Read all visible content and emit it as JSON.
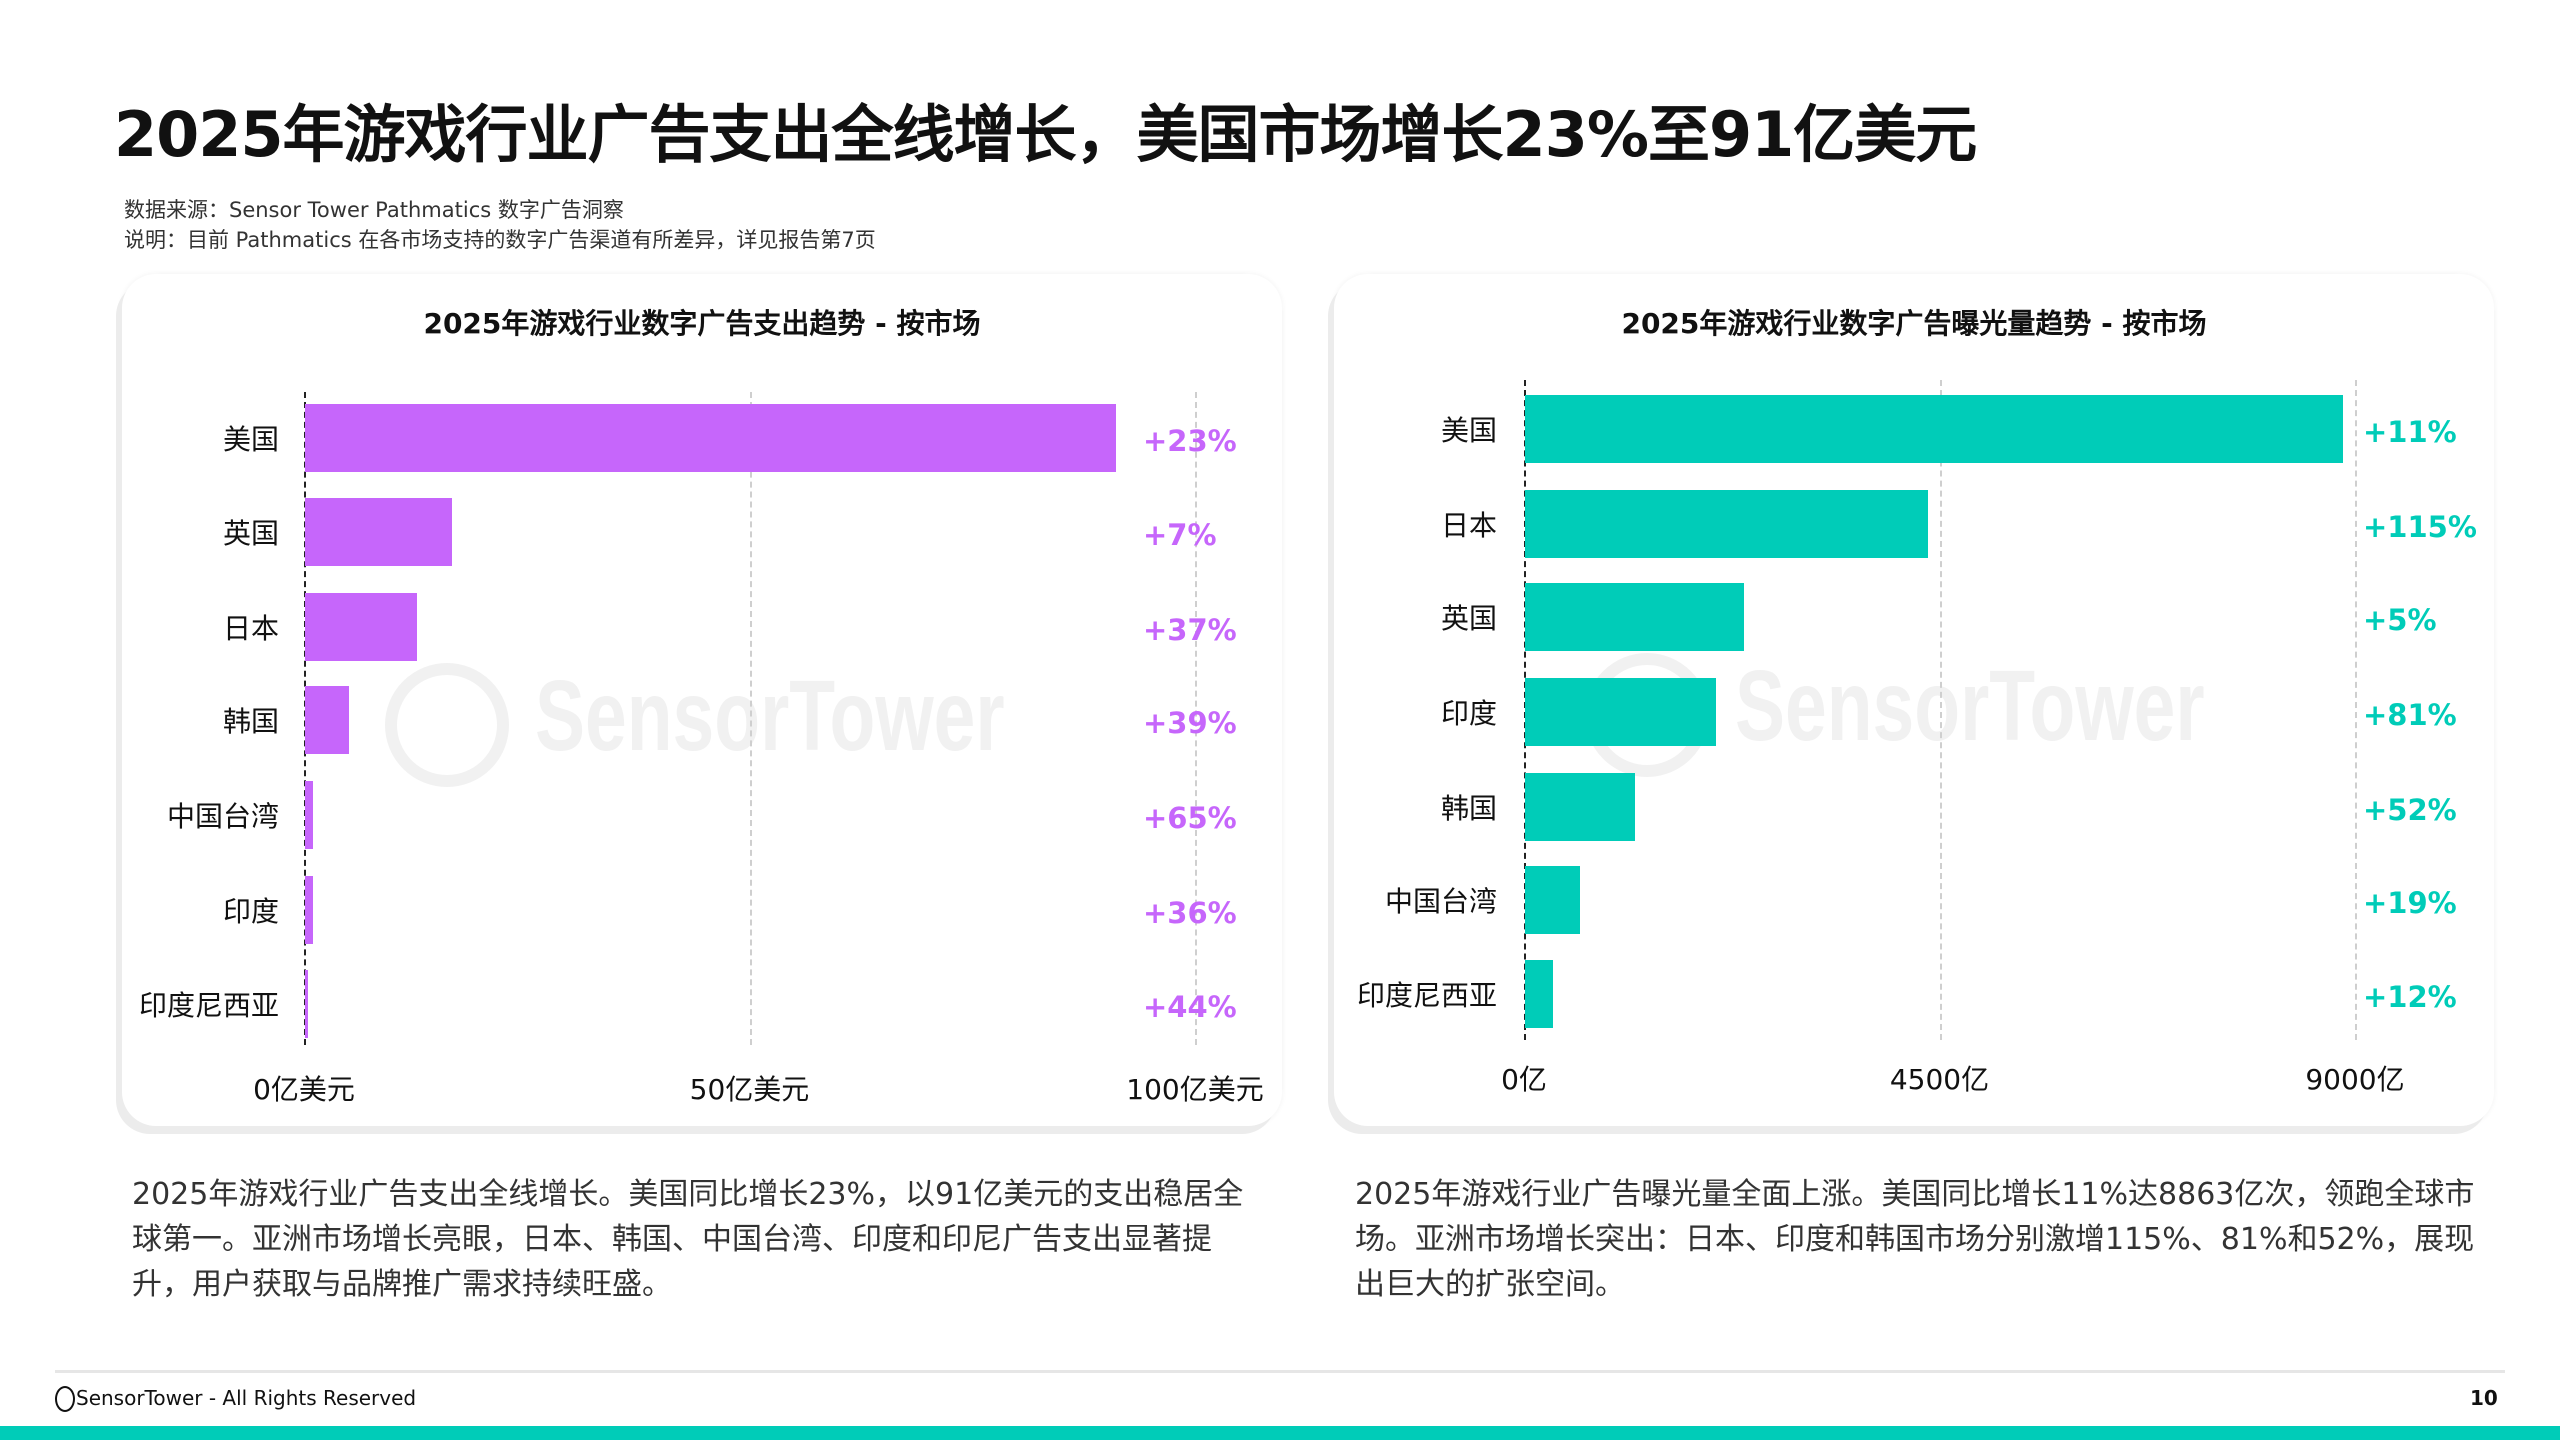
{
  "title": "2025年游戏行业广告支出全线增长，美国市场增长23%至91亿美元",
  "notes": {
    "source": "数据来源：Sensor Tower  Pathmatics  数字广告洞察",
    "description": "说明：目前 Pathmatics 在各市场支持的数字广告渠道有所差异，详见报告第7页"
  },
  "watermark": "SensorTower",
  "chart_data": [
    {
      "type": "bar",
      "orientation": "horizontal",
      "title": "2025年游戏行业数字广告支出趋势 - 按市场",
      "categories": [
        "美国",
        "英国",
        "日本",
        "韩国",
        "中国台湾",
        "印度",
        "印度尼西亚"
      ],
      "values": [
        91,
        16.5,
        12.6,
        4.9,
        0.9,
        0.9,
        0.3
      ],
      "growth_labels": [
        "+23%",
        "+7%",
        "+37%",
        "+39%",
        "+65%",
        "+36%",
        "+44%"
      ],
      "xlim": [
        0,
        100
      ],
      "ticks": [
        0,
        50,
        100
      ],
      "tick_labels": [
        "0亿美元",
        "50亿美元",
        "100亿美元"
      ],
      "grid": true,
      "color": "#c666fb",
      "label_color": "#c666fb"
    },
    {
      "type": "bar",
      "orientation": "horizontal",
      "title": "2025年游戏行业数字广告曝光量趋势 - 按市场",
      "categories": [
        "美国",
        "日本",
        "英国",
        "印度",
        "韩国",
        "中国台湾",
        "印度尼西亚"
      ],
      "values": [
        8863,
        4370,
        2370,
        2070,
        1190,
        600,
        300
      ],
      "growth_labels": [
        "+11%",
        "+115%",
        "+5%",
        "+81%",
        "+52%",
        "+19%",
        "+12%"
      ],
      "xlim": [
        0,
        9000
      ],
      "ticks": [
        0,
        4500,
        9000
      ],
      "tick_labels": [
        "0亿",
        "4500亿",
        "9000亿"
      ],
      "grid": true,
      "color": "#00ccb8",
      "label_color": "#00ccb8"
    }
  ],
  "descriptions": {
    "left": "2025年游戏行业广告支出全线增长。美国同比增长23%，以91亿美元的支出稳居全球第一。亚洲市场增长亮眼，日本、韩国、中国台湾、印度和印尼广告支出显著提升，用户获取与品牌推广需求持续旺盛。",
    "right": "2025年游戏行业广告曝光量全面上涨。美国同比增长11%达8863亿次，领跑全球市场。亚洲市场增长突出：日本、印度和韩国市场分别激增115%、81%和52%，展现出巨大的扩张空间。"
  },
  "footer": {
    "text": "SensorTower - All Rights Reserved",
    "page_number": "10"
  },
  "colors": {
    "brand": "#00ccb8",
    "spend_bar": "#c666fb"
  }
}
